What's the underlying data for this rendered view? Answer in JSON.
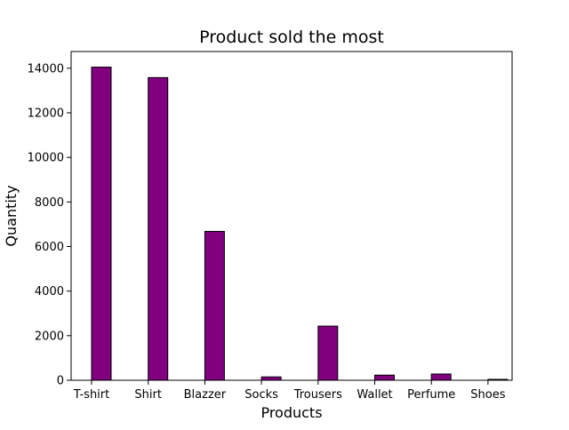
{
  "chart_data": {
    "type": "bar",
    "title": "Product sold the most",
    "xlabel": "Products",
    "ylabel": "Quantity",
    "categories": [
      "T-shirt",
      "Shirt",
      "Blazzer",
      "Socks",
      "Trousers",
      "Wallet",
      "Perfume",
      "Shoes"
    ],
    "values": [
      14050,
      13580,
      6680,
      150,
      2430,
      230,
      280,
      40
    ],
    "ylim": [
      0,
      14750
    ],
    "yticks": [
      0,
      2000,
      4000,
      6000,
      8000,
      10000,
      12000,
      14000
    ],
    "grid": false,
    "bar_color": "#800080",
    "edge_color": "#000000"
  }
}
